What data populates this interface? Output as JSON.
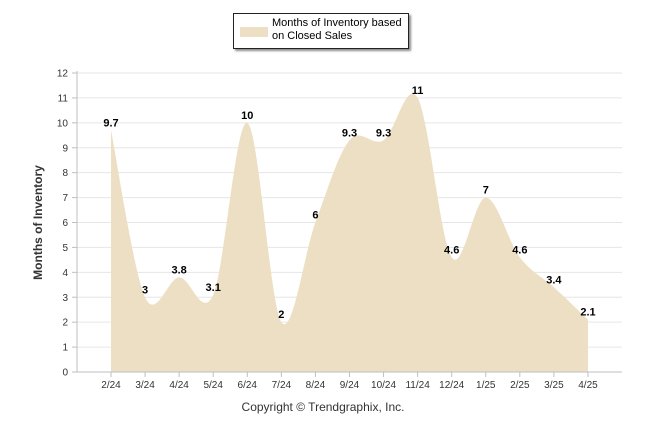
{
  "legend": {
    "label": "Months of Inventory based on Closed Sales"
  },
  "footer": {
    "copyright": "Copyright © Trendgraphix, Inc."
  },
  "colors": {
    "area_fill": "#eddfc3",
    "gridline": "#e6e6e6",
    "axis": "#bfbfbf",
    "tick_text": "#333333",
    "label_text": "#000000"
  },
  "chart_data": {
    "type": "area",
    "title": "",
    "xlabel": "",
    "ylabel": "Months of Inventory",
    "ylim": [
      0,
      12
    ],
    "yticks": [
      0,
      1,
      2,
      3,
      4,
      5,
      6,
      7,
      8,
      9,
      10,
      11,
      12
    ],
    "grid": true,
    "legend_position": "top-center",
    "categories": [
      "2/24",
      "3/24",
      "4/24",
      "5/24",
      "6/24",
      "7/24",
      "8/24",
      "9/24",
      "10/24",
      "11/24",
      "12/24",
      "1/25",
      "2/25",
      "3/25",
      "4/25"
    ],
    "series": [
      {
        "name": "Months of Inventory based on Closed Sales",
        "values": [
          9.7,
          3,
          3.8,
          3.1,
          10,
          2,
          6,
          9.3,
          9.3,
          11,
          4.6,
          7,
          4.6,
          3.4,
          2.1
        ],
        "data_labels": [
          "9.7",
          "3",
          "3.8",
          "3.1",
          "10",
          "2",
          "6",
          "9.3",
          "9.3",
          "11",
          "4.6",
          "7",
          "4.6",
          "3.4",
          "2.1"
        ]
      }
    ]
  }
}
